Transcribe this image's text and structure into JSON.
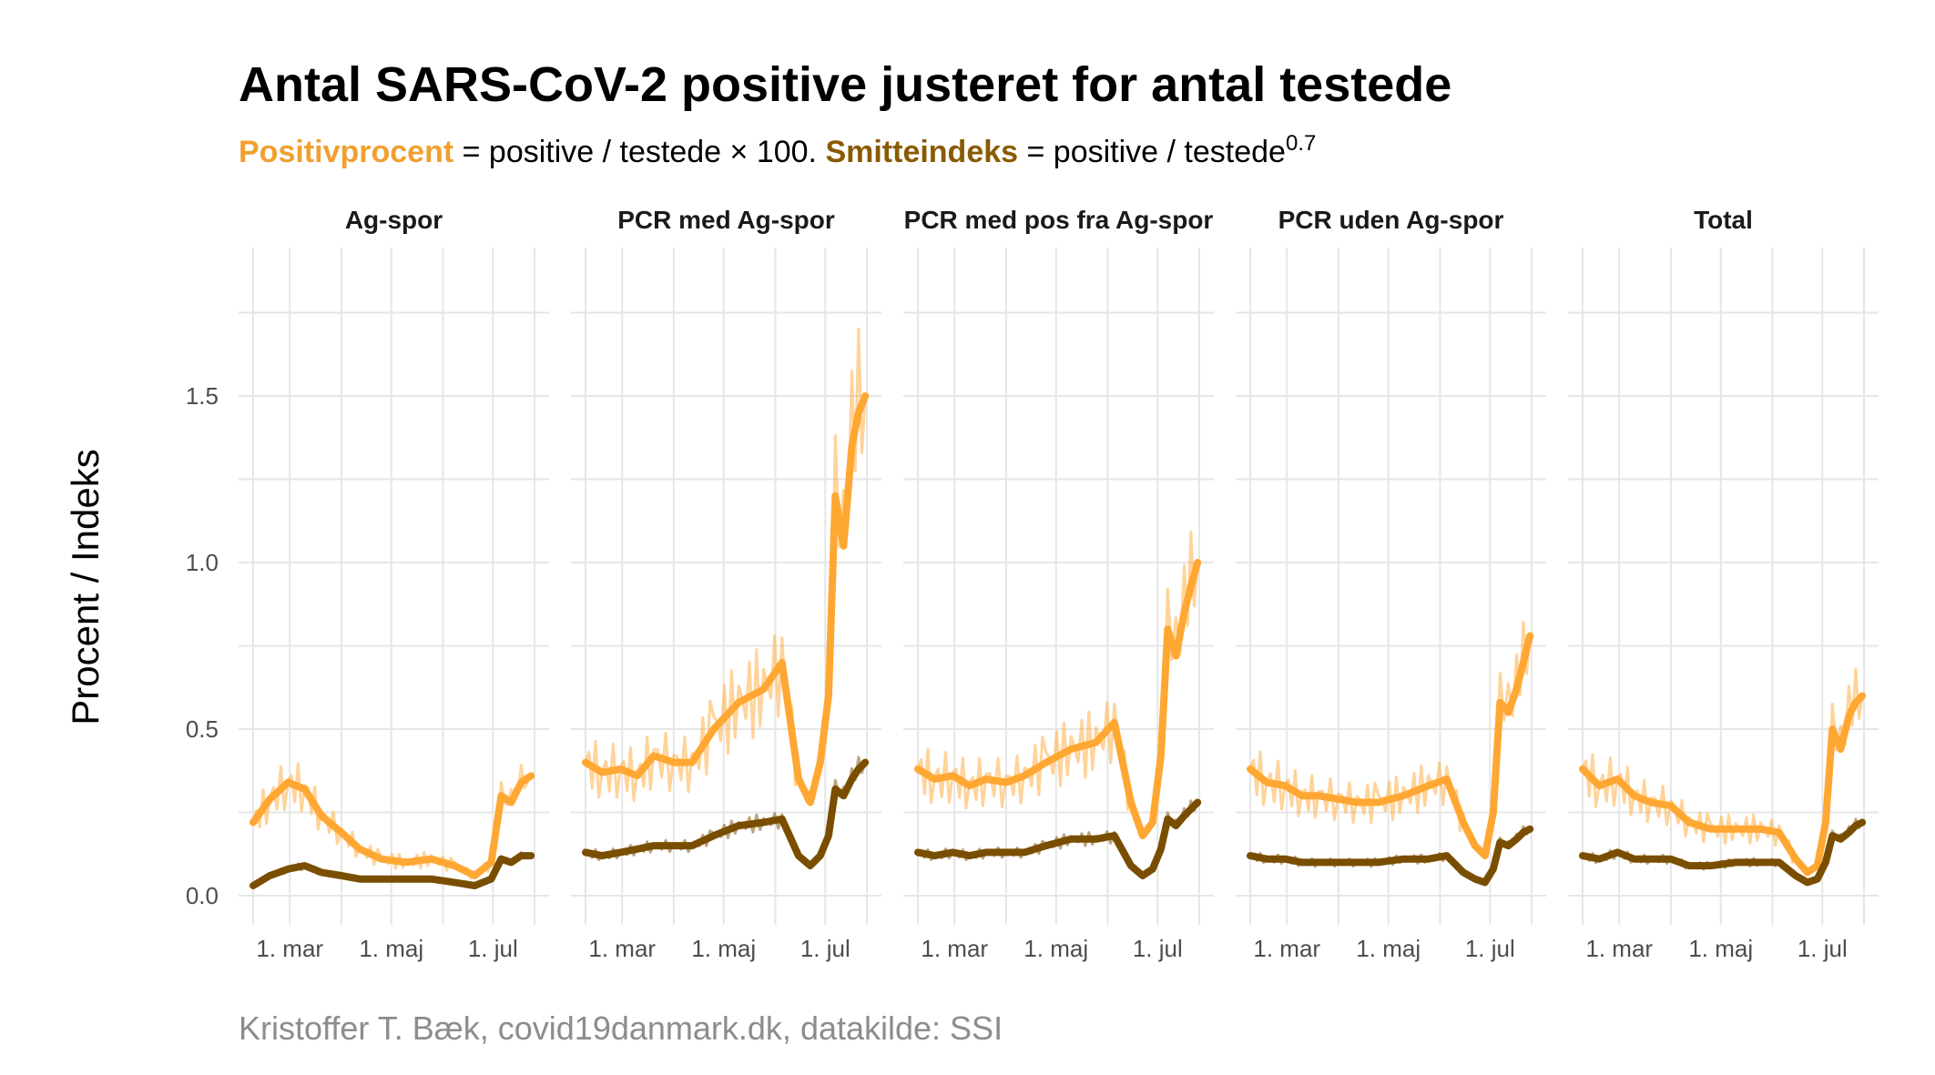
{
  "title": "Antal SARS-CoV-2 positive justeret for antal testede",
  "subtitle": {
    "positiv_label": "Positivprocent",
    "positiv_formula": " = positive / testede × 100. ",
    "smitte_label": "Smitteindeks",
    "smitte_formula": " = positive / testede",
    "exponent": "0.7"
  },
  "caption": "Kristoffer T. Bæk, covid19danmark.dk, datakilde: SSI",
  "colors": {
    "positivprocent": "#ffa733",
    "smitteindeks": "#7a4e00"
  },
  "chart_data": {
    "type": "line",
    "ylabel": "Procent / Indeks",
    "ylim": [
      0,
      1.9
    ],
    "yticks": [
      0.0,
      0.5,
      1.0,
      1.5
    ],
    "ytick_labels": [
      "0.0",
      "0.5",
      "1.0",
      "1.5"
    ],
    "x_domain": [
      "2021-02-07",
      "2021-07-26"
    ],
    "xticks": [
      "2021-03-01",
      "2021-05-01",
      "2021-07-01"
    ],
    "xtick_labels": [
      "1. mar",
      "1. maj",
      "1. jul"
    ],
    "grid": true,
    "panels": [
      {
        "name": "Ag-spor",
        "series": [
          {
            "name": "Positivprocent",
            "x": [
              "2021-02-07",
              "2021-02-17",
              "2021-02-28",
              "2021-03-10",
              "2021-03-20",
              "2021-04-01",
              "2021-04-12",
              "2021-04-25",
              "2021-05-10",
              "2021-05-25",
              "2021-06-08",
              "2021-06-20",
              "2021-06-30",
              "2021-07-06",
              "2021-07-12",
              "2021-07-18",
              "2021-07-24"
            ],
            "y": [
              0.22,
              0.29,
              0.34,
              0.32,
              0.24,
              0.19,
              0.14,
              0.11,
              0.1,
              0.11,
              0.09,
              0.06,
              0.1,
              0.3,
              0.28,
              0.34,
              0.36
            ]
          },
          {
            "name": "Smitteindeks",
            "x": [
              "2021-02-07",
              "2021-02-17",
              "2021-02-28",
              "2021-03-10",
              "2021-03-20",
              "2021-04-01",
              "2021-04-12",
              "2021-04-25",
              "2021-05-10",
              "2021-05-25",
              "2021-06-08",
              "2021-06-20",
              "2021-06-30",
              "2021-07-06",
              "2021-07-12",
              "2021-07-18",
              "2021-07-24"
            ],
            "y": [
              0.03,
              0.06,
              0.08,
              0.09,
              0.07,
              0.06,
              0.05,
              0.05,
              0.05,
              0.05,
              0.04,
              0.03,
              0.05,
              0.11,
              0.1,
              0.12,
              0.12
            ]
          }
        ]
      },
      {
        "name": "PCR med Ag-spor",
        "series": [
          {
            "name": "Positivprocent",
            "x": [
              "2021-02-07",
              "2021-02-17",
              "2021-02-28",
              "2021-03-10",
              "2021-03-20",
              "2021-04-01",
              "2021-04-12",
              "2021-04-25",
              "2021-05-10",
              "2021-05-25",
              "2021-06-05",
              "2021-06-15",
              "2021-06-22",
              "2021-06-28",
              "2021-07-03",
              "2021-07-07",
              "2021-07-12",
              "2021-07-17",
              "2021-07-21",
              "2021-07-25"
            ],
            "y": [
              0.4,
              0.37,
              0.38,
              0.36,
              0.42,
              0.4,
              0.4,
              0.5,
              0.58,
              0.62,
              0.7,
              0.35,
              0.28,
              0.4,
              0.6,
              1.2,
              1.05,
              1.35,
              1.45,
              1.5
            ]
          },
          {
            "name": "Smitteindeks",
            "x": [
              "2021-02-07",
              "2021-02-17",
              "2021-02-28",
              "2021-03-10",
              "2021-03-20",
              "2021-04-01",
              "2021-04-12",
              "2021-04-25",
              "2021-05-10",
              "2021-05-25",
              "2021-06-05",
              "2021-06-15",
              "2021-06-22",
              "2021-06-28",
              "2021-07-03",
              "2021-07-07",
              "2021-07-12",
              "2021-07-17",
              "2021-07-21",
              "2021-07-25"
            ],
            "y": [
              0.13,
              0.12,
              0.13,
              0.14,
              0.15,
              0.15,
              0.15,
              0.18,
              0.21,
              0.22,
              0.23,
              0.12,
              0.09,
              0.12,
              0.18,
              0.32,
              0.3,
              0.35,
              0.38,
              0.4
            ]
          }
        ]
      },
      {
        "name": "PCR med pos fra Ag-spor",
        "series": [
          {
            "name": "Positivprocent",
            "x": [
              "2021-02-07",
              "2021-02-17",
              "2021-02-28",
              "2021-03-10",
              "2021-03-20",
              "2021-04-01",
              "2021-04-12",
              "2021-04-25",
              "2021-05-10",
              "2021-05-25",
              "2021-06-05",
              "2021-06-15",
              "2021-06-22",
              "2021-06-28",
              "2021-07-03",
              "2021-07-07",
              "2021-07-12",
              "2021-07-17",
              "2021-07-21",
              "2021-07-25"
            ],
            "y": [
              0.38,
              0.35,
              0.36,
              0.33,
              0.35,
              0.34,
              0.36,
              0.4,
              0.44,
              0.46,
              0.52,
              0.28,
              0.18,
              0.22,
              0.42,
              0.8,
              0.72,
              0.85,
              0.93,
              1.0
            ]
          },
          {
            "name": "Smitteindeks",
            "x": [
              "2021-02-07",
              "2021-02-17",
              "2021-02-28",
              "2021-03-10",
              "2021-03-20",
              "2021-04-01",
              "2021-04-12",
              "2021-04-25",
              "2021-05-10",
              "2021-05-25",
              "2021-06-05",
              "2021-06-15",
              "2021-06-22",
              "2021-06-28",
              "2021-07-03",
              "2021-07-07",
              "2021-07-12",
              "2021-07-17",
              "2021-07-21",
              "2021-07-25"
            ],
            "y": [
              0.13,
              0.12,
              0.13,
              0.12,
              0.13,
              0.13,
              0.13,
              0.15,
              0.17,
              0.17,
              0.18,
              0.09,
              0.06,
              0.08,
              0.14,
              0.23,
              0.21,
              0.24,
              0.26,
              0.28
            ]
          }
        ]
      },
      {
        "name": "PCR uden Ag-spor",
        "series": [
          {
            "name": "Positivprocent",
            "x": [
              "2021-02-07",
              "2021-02-17",
              "2021-02-28",
              "2021-03-10",
              "2021-03-20",
              "2021-04-01",
              "2021-04-12",
              "2021-04-25",
              "2021-05-10",
              "2021-05-25",
              "2021-06-05",
              "2021-06-15",
              "2021-06-22",
              "2021-06-28",
              "2021-07-03",
              "2021-07-07",
              "2021-07-12",
              "2021-07-17",
              "2021-07-21",
              "2021-07-25"
            ],
            "y": [
              0.38,
              0.34,
              0.33,
              0.3,
              0.3,
              0.29,
              0.28,
              0.28,
              0.3,
              0.33,
              0.35,
              0.22,
              0.15,
              0.12,
              0.25,
              0.58,
              0.55,
              0.62,
              0.7,
              0.78
            ]
          },
          {
            "name": "Smitteindeks",
            "x": [
              "2021-02-07",
              "2021-02-17",
              "2021-02-28",
              "2021-03-10",
              "2021-03-20",
              "2021-04-01",
              "2021-04-12",
              "2021-04-25",
              "2021-05-10",
              "2021-05-25",
              "2021-06-05",
              "2021-06-15",
              "2021-06-22",
              "2021-06-28",
              "2021-07-03",
              "2021-07-07",
              "2021-07-12",
              "2021-07-17",
              "2021-07-21",
              "2021-07-25"
            ],
            "y": [
              0.12,
              0.11,
              0.11,
              0.1,
              0.1,
              0.1,
              0.1,
              0.1,
              0.11,
              0.11,
              0.12,
              0.07,
              0.05,
              0.04,
              0.08,
              0.16,
              0.15,
              0.17,
              0.19,
              0.2
            ]
          }
        ]
      },
      {
        "name": "Total",
        "series": [
          {
            "name": "Positivprocent",
            "x": [
              "2021-02-07",
              "2021-02-17",
              "2021-02-28",
              "2021-03-10",
              "2021-03-20",
              "2021-04-01",
              "2021-04-12",
              "2021-04-25",
              "2021-05-10",
              "2021-05-25",
              "2021-06-05",
              "2021-06-15",
              "2021-06-22",
              "2021-06-28",
              "2021-07-03",
              "2021-07-07",
              "2021-07-12",
              "2021-07-17",
              "2021-07-21",
              "2021-07-25"
            ],
            "y": [
              0.38,
              0.33,
              0.35,
              0.3,
              0.28,
              0.27,
              0.22,
              0.2,
              0.2,
              0.2,
              0.19,
              0.11,
              0.07,
              0.09,
              0.22,
              0.5,
              0.44,
              0.54,
              0.58,
              0.6
            ]
          },
          {
            "name": "Smitteindeks",
            "x": [
              "2021-02-07",
              "2021-02-17",
              "2021-02-28",
              "2021-03-10",
              "2021-03-20",
              "2021-04-01",
              "2021-04-12",
              "2021-04-25",
              "2021-05-10",
              "2021-05-25",
              "2021-06-05",
              "2021-06-15",
              "2021-06-22",
              "2021-06-28",
              "2021-07-03",
              "2021-07-07",
              "2021-07-12",
              "2021-07-17",
              "2021-07-21",
              "2021-07-25"
            ],
            "y": [
              0.12,
              0.11,
              0.13,
              0.11,
              0.11,
              0.11,
              0.09,
              0.09,
              0.1,
              0.1,
              0.1,
              0.06,
              0.04,
              0.05,
              0.1,
              0.18,
              0.17,
              0.19,
              0.21,
              0.22
            ]
          }
        ]
      }
    ]
  }
}
